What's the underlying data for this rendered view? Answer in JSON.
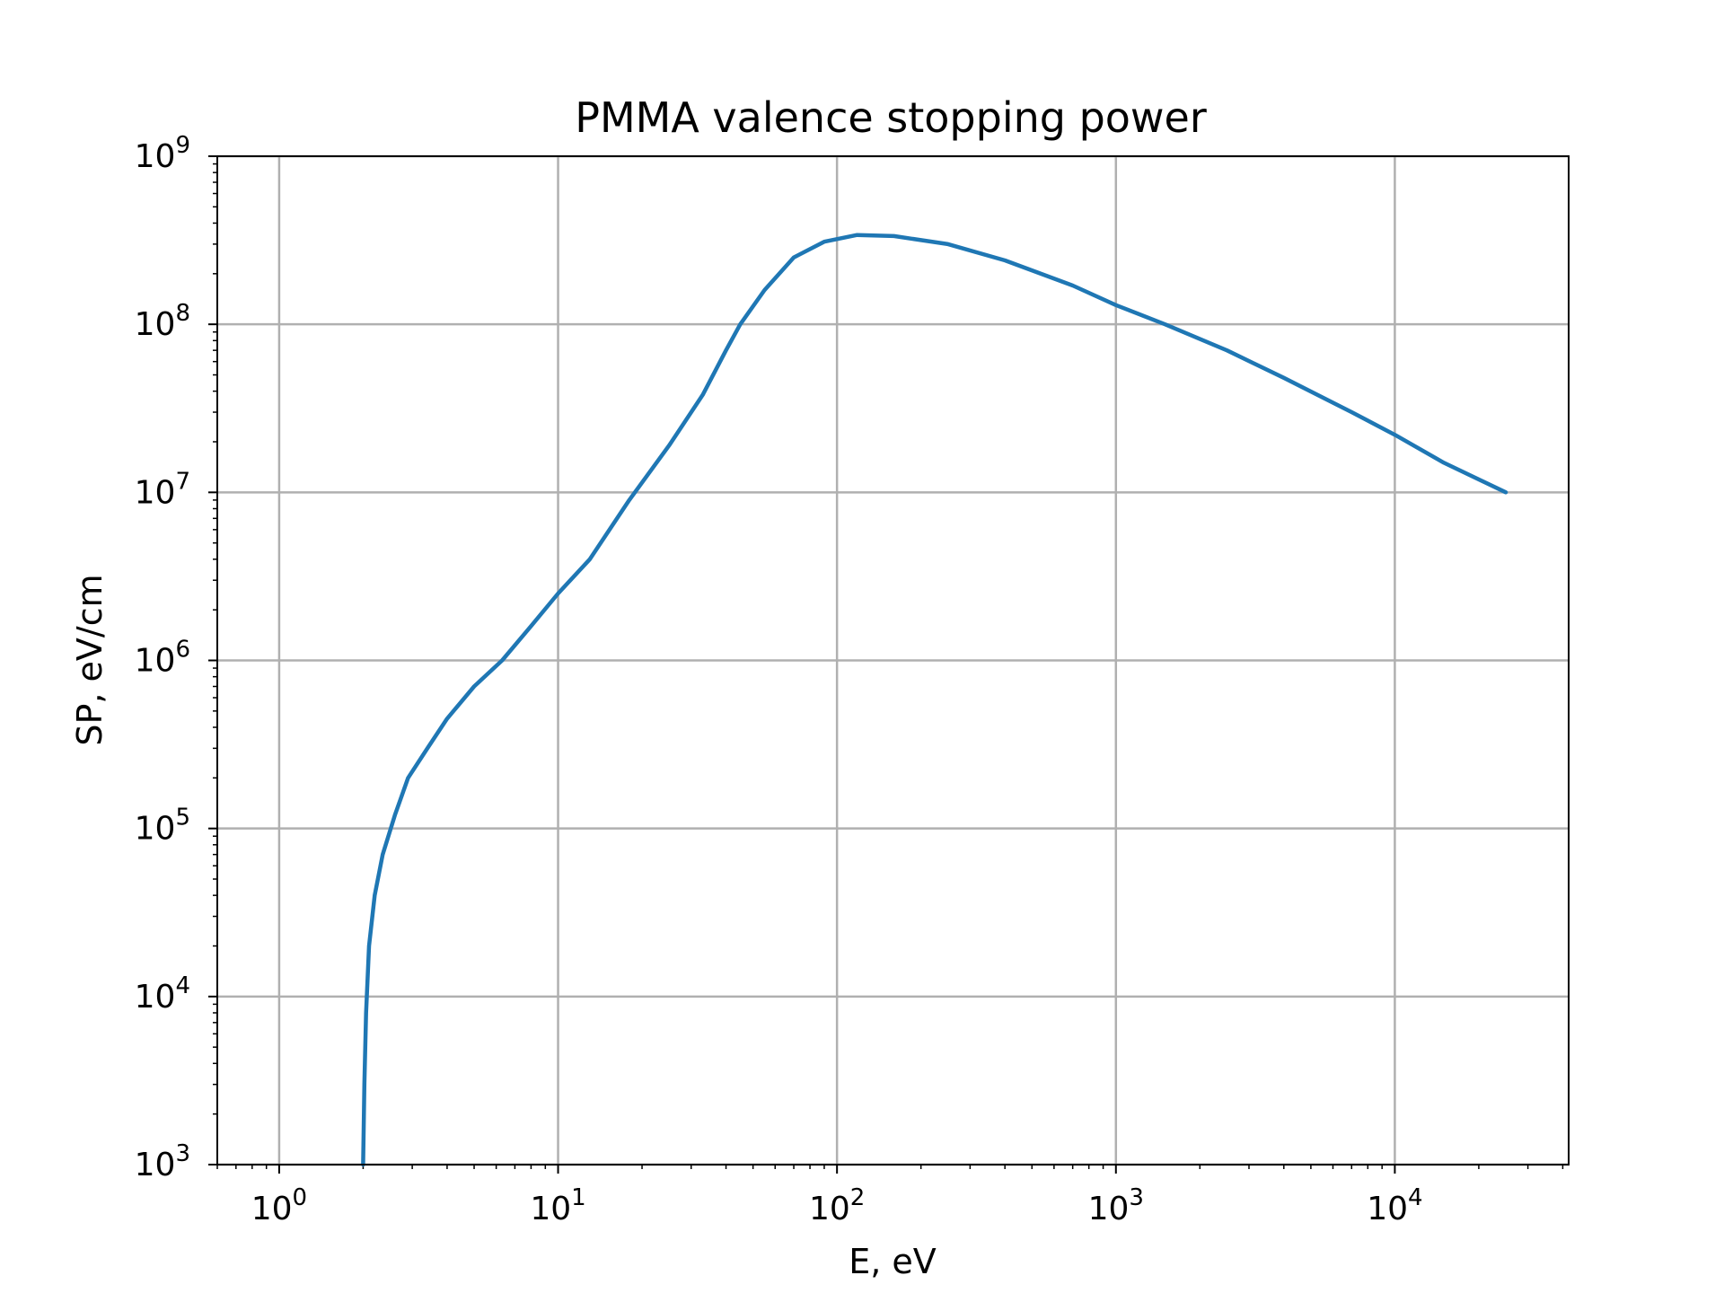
{
  "chart_data": {
    "type": "line",
    "title": "PMMA valence stopping power",
    "xlabel": "E, eV",
    "ylabel": "SP, eV/cm",
    "xscale": "log",
    "yscale": "log",
    "xlim": [
      0.6,
      42000
    ],
    "ylim": [
      1000,
      1000000000
    ],
    "grid": true,
    "x_ticks": [
      {
        "value": 1,
        "base": "10",
        "exp": "0"
      },
      {
        "value": 10,
        "base": "10",
        "exp": "1"
      },
      {
        "value": 100,
        "base": "10",
        "exp": "2"
      },
      {
        "value": 1000,
        "base": "10",
        "exp": "3"
      },
      {
        "value": 10000,
        "base": "10",
        "exp": "4"
      }
    ],
    "y_ticks": [
      {
        "value": 1000,
        "base": "10",
        "exp": "3"
      },
      {
        "value": 10000,
        "base": "10",
        "exp": "4"
      },
      {
        "value": 100000,
        "base": "10",
        "exp": "5"
      },
      {
        "value": 1000000,
        "base": "10",
        "exp": "6"
      },
      {
        "value": 10000000,
        "base": "10",
        "exp": "7"
      },
      {
        "value": 100000000,
        "base": "10",
        "exp": "8"
      },
      {
        "value": 1000000000,
        "base": "10",
        "exp": "9"
      }
    ],
    "colors": {
      "line": "#1f77b4",
      "grid": "#b0b0b0",
      "axes": "#000000"
    },
    "series": [
      {
        "name": "SP",
        "x": [
          2.0,
          2.02,
          2.05,
          2.1,
          2.2,
          2.35,
          2.6,
          2.9,
          3.4,
          4.0,
          5.0,
          6.3,
          8.0,
          10.0,
          13.0,
          18.0,
          25.0,
          33.0,
          40.0,
          45.0,
          55.0,
          70.0,
          90.0,
          118.0,
          160.0,
          250.0,
          400.0,
          700.0,
          1000.0,
          1500.0,
          2500.0,
          4000.0,
          7000.0,
          10000.0,
          15000.0,
          25000.0
        ],
        "y": [
          1000,
          3000,
          8000,
          20000,
          40000,
          70000,
          120000,
          200000,
          300000,
          450000,
          700000,
          1000000,
          1600000,
          2500000,
          4000000,
          9000000,
          19000000,
          38000000,
          70000000,
          100000000,
          160000000,
          250000000,
          310000000,
          340000000,
          335000000,
          300000000,
          240000000,
          170000000,
          130000000,
          100000000,
          70000000,
          48000000,
          30000000,
          22000000,
          15000000,
          10000000
        ]
      }
    ]
  }
}
